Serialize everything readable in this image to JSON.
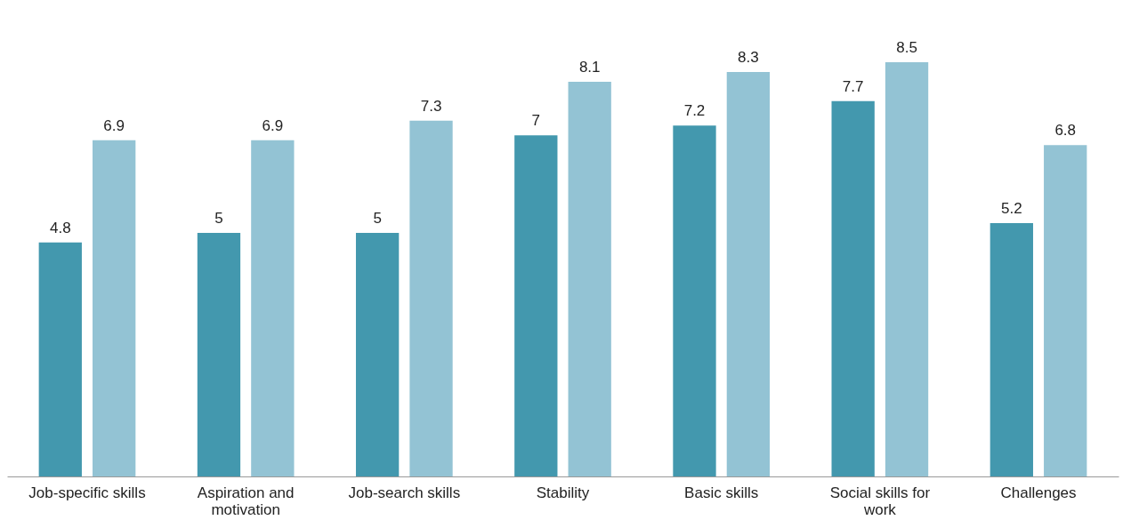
{
  "chart_data": {
    "type": "bar",
    "categories": [
      "Job-specific skills",
      "Aspiration and motivation",
      "Job-search skills",
      "Stability",
      "Basic skills",
      "Social skills for work",
      "Challenges"
    ],
    "series": [
      {
        "color": "#4398ae",
        "values": [
          4.8,
          5,
          5,
          7,
          7.2,
          7.7,
          5.2
        ]
      },
      {
        "color": "#93c3d4",
        "values": [
          6.9,
          6.9,
          7.3,
          8.1,
          8.3,
          8.5,
          6.8
        ]
      }
    ],
    "data_labels": true,
    "grid": false,
    "legend": false
  }
}
